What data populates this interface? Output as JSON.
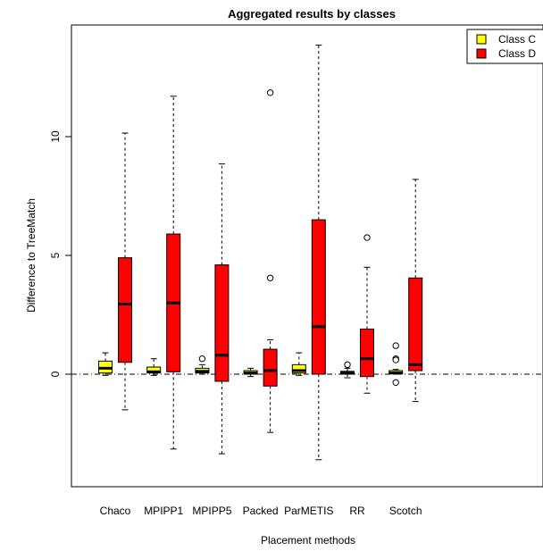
{
  "chart_data": {
    "type": "boxplot",
    "title": "Aggregated results by classes",
    "xlabel": "Placement methods",
    "ylabel": "Difference to TreeMatch",
    "categories": [
      "Chaco",
      "MPIPP1",
      "MPIPP5",
      "Packed",
      "ParMETIS",
      "RR",
      "Scotch"
    ],
    "ylim": [
      -5.8,
      14.6
    ],
    "yticks": [
      "0",
      "5",
      "10"
    ],
    "legend_position": "top-right",
    "reference_line": 0,
    "series": [
      {
        "name": "Class C",
        "color": "#ffff00",
        "boxes": [
          {
            "whisker_low": -0.05,
            "q1": 0.05,
            "median": 0.25,
            "q3": 0.55,
            "whisker_high": 0.9,
            "outliers": []
          },
          {
            "whisker_low": -0.05,
            "q1": 0.05,
            "median": 0.1,
            "q3": 0.3,
            "whisker_high": 0.65,
            "outliers": []
          },
          {
            "whisker_low": 0.0,
            "q1": 0.05,
            "median": 0.12,
            "q3": 0.25,
            "whisker_high": 0.4,
            "outliers": [
              0.65
            ]
          },
          {
            "whisker_low": -0.1,
            "q1": 0.0,
            "median": 0.05,
            "q3": 0.15,
            "whisker_high": 0.25,
            "outliers": []
          },
          {
            "whisker_low": -0.05,
            "q1": 0.05,
            "median": 0.15,
            "q3": 0.4,
            "whisker_high": 0.9,
            "outliers": []
          },
          {
            "whisker_low": -0.15,
            "q1": 0.0,
            "median": 0.05,
            "q3": 0.12,
            "whisker_high": 0.25,
            "outliers": [
              0.4
            ]
          },
          {
            "whisker_low": 0.0,
            "q1": 0.02,
            "median": 0.05,
            "q3": 0.15,
            "whisker_high": 0.2,
            "outliers": [
              1.2,
              0.65,
              0.6,
              -0.35
            ]
          }
        ]
      },
      {
        "name": "Class D",
        "color": "#ff0000",
        "boxes": [
          {
            "whisker_low": -1.5,
            "q1": 0.5,
            "median": 2.95,
            "q3": 4.9,
            "whisker_high": 10.15,
            "outliers": []
          },
          {
            "whisker_low": -3.15,
            "q1": 0.1,
            "median": 3.0,
            "q3": 5.9,
            "whisker_high": 11.7,
            "outliers": []
          },
          {
            "whisker_low": -3.35,
            "q1": -0.3,
            "median": 0.8,
            "q3": 4.6,
            "whisker_high": 8.85,
            "outliers": []
          },
          {
            "whisker_low": -2.45,
            "q1": -0.5,
            "median": 0.15,
            "q3": 1.05,
            "whisker_high": 1.45,
            "outliers": [
              11.85,
              4.05
            ]
          },
          {
            "whisker_low": -3.6,
            "q1": 0.0,
            "median": 2.0,
            "q3": 6.5,
            "whisker_high": 13.85,
            "outliers": []
          },
          {
            "whisker_low": -0.8,
            "q1": -0.1,
            "median": 0.65,
            "q3": 1.9,
            "whisker_high": 4.5,
            "outliers": [
              5.75
            ]
          },
          {
            "whisker_low": -1.15,
            "q1": 0.15,
            "median": 0.4,
            "q3": 4.05,
            "whisker_high": 8.2,
            "outliers": []
          }
        ]
      }
    ]
  }
}
